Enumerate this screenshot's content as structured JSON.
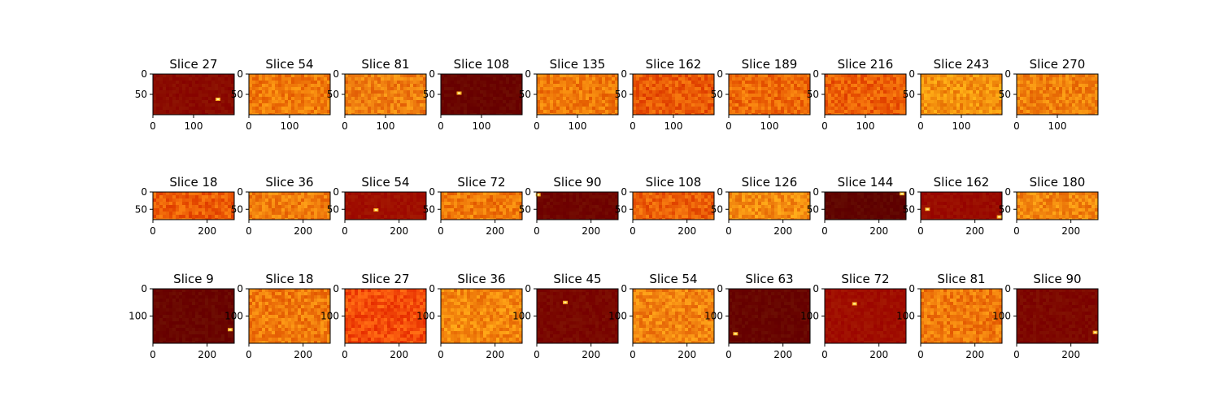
{
  "chart_data": [
    {
      "type": "heatmap",
      "rows": [
        {
          "image_height": 100,
          "image_width": 200,
          "yticks": [
            "0",
            "50"
          ],
          "xticks": [
            "0",
            "100"
          ],
          "panels": [
            {
              "title": "Slice 27",
              "base_color": "#8a0b00",
              "noise": "low",
              "hotspots": [
                {
                  "x": 160,
                  "y": 62
                }
              ]
            },
            {
              "title": "Slice 54",
              "base_color": "#f07a0a",
              "noise": "high",
              "hotspots": []
            },
            {
              "title": "Slice 81",
              "base_color": "#f08010",
              "noise": "high",
              "hotspots": []
            },
            {
              "title": "Slice 108",
              "base_color": "#6a0400",
              "noise": "low",
              "hotspots": [
                {
                  "x": 45,
                  "y": 47
                }
              ]
            },
            {
              "title": "Slice 135",
              "base_color": "#f07a0a",
              "noise": "high",
              "hotspots": []
            },
            {
              "title": "Slice 162",
              "base_color": "#ea5a06",
              "noise": "high",
              "hotspots": []
            },
            {
              "title": "Slice 189",
              "base_color": "#ee6a08",
              "noise": "high",
              "hotspots": []
            },
            {
              "title": "Slice 216",
              "base_color": "#ec5e06",
              "noise": "high",
              "hotspots": []
            },
            {
              "title": "Slice 243",
              "base_color": "#f4920e",
              "noise": "high",
              "hotspots": []
            },
            {
              "title": "Slice 270",
              "base_color": "#f0800c",
              "noise": "high",
              "hotspots": []
            }
          ]
        },
        {
          "image_height": 80,
          "image_width": 300,
          "yticks": [
            "0",
            "50"
          ],
          "xticks": [
            "0",
            "200"
          ],
          "panels": [
            {
              "title": "Slice 18",
              "base_color": "#ec5c06",
              "noise": "high",
              "hotspots": []
            },
            {
              "title": "Slice 36",
              "base_color": "#f07c0c",
              "noise": "high",
              "hotspots": []
            },
            {
              "title": "Slice 54",
              "base_color": "#a01000",
              "noise": "low",
              "hotspots": [
                {
                  "x": 115,
                  "y": 52
                }
              ]
            },
            {
              "title": "Slice 72",
              "base_color": "#f07a0a",
              "noise": "high",
              "hotspots": []
            },
            {
              "title": "Slice 90",
              "base_color": "#700500",
              "noise": "low",
              "hotspots": [
                {
                  "x": 5,
                  "y": 8
                }
              ]
            },
            {
              "title": "Slice 108",
              "base_color": "#ec6008",
              "noise": "high",
              "hotspots": []
            },
            {
              "title": "Slice 126",
              "base_color": "#f48c10",
              "noise": "high",
              "hotspots": []
            },
            {
              "title": "Slice 144",
              "base_color": "#600300",
              "noise": "low",
              "hotspots": [
                {
                  "x": 285,
                  "y": 5
                }
              ]
            },
            {
              "title": "Slice 162",
              "base_color": "#9a0c00",
              "noise": "low",
              "hotspots": [
                {
                  "x": 25,
                  "y": 50
                },
                {
                  "x": 290,
                  "y": 72
                }
              ]
            },
            {
              "title": "Slice 180",
              "base_color": "#f2860e",
              "noise": "high",
              "hotspots": []
            }
          ]
        },
        {
          "image_height": 200,
          "image_width": 300,
          "yticks": [
            "0",
            "100"
          ],
          "xticks": [
            "0",
            "200"
          ],
          "panels": [
            {
              "title": "Slice 9",
              "base_color": "#6a0500",
              "noise": "low",
              "hotspots": [
                {
                  "x": 285,
                  "y": 150
                }
              ]
            },
            {
              "title": "Slice 18",
              "base_color": "#f07a0c",
              "noise": "high",
              "hotspots": []
            },
            {
              "title": "Slice 27",
              "base_color": "#f44e0a",
              "noise": "high",
              "hotspots": []
            },
            {
              "title": "Slice 36",
              "base_color": "#f4880e",
              "noise": "high",
              "hotspots": []
            },
            {
              "title": "Slice 45",
              "base_color": "#7a0700",
              "noise": "low",
              "hotspots": [
                {
                  "x": 105,
                  "y": 50
                }
              ]
            },
            {
              "title": "Slice 54",
              "base_color": "#f28410",
              "noise": "high",
              "hotspots": []
            },
            {
              "title": "Slice 63",
              "base_color": "#680400",
              "noise": "low",
              "hotspots": [
                {
                  "x": 25,
                  "y": 165
                }
              ]
            },
            {
              "title": "Slice 72",
              "base_color": "#a00e00",
              "noise": "low",
              "hotspots": [
                {
                  "x": 110,
                  "y": 55
                }
              ]
            },
            {
              "title": "Slice 81",
              "base_color": "#f07a0c",
              "noise": "high",
              "hotspots": []
            },
            {
              "title": "Slice 90",
              "base_color": "#7e0800",
              "noise": "low",
              "hotspots": [
                {
                  "x": 290,
                  "y": 160
                }
              ]
            }
          ]
        }
      ],
      "colormap": "hot",
      "grid": false,
      "legend": "none"
    }
  ]
}
